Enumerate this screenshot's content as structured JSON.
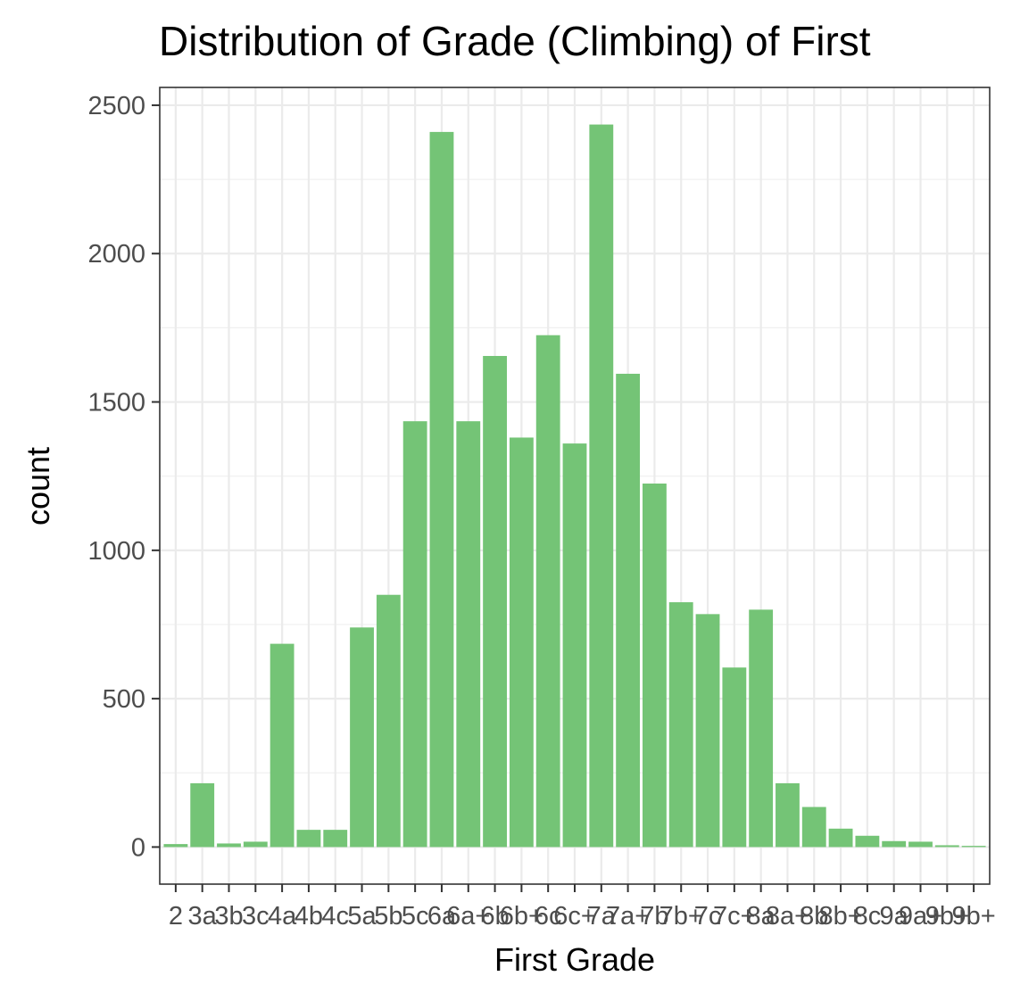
{
  "chart_data": {
    "type": "bar",
    "title": "Distribution of Grade (Climbing) of First",
    "xlabel": "First Grade",
    "ylabel": "count",
    "categories": [
      "2",
      "3a",
      "3b",
      "3c",
      "4a",
      "4b",
      "4c",
      "5a",
      "5b",
      "5c",
      "6a",
      "6a+",
      "6b",
      "6b+",
      "6c",
      "6c+",
      "7a",
      "7a+",
      "7b",
      "7b+",
      "7c",
      "7c+",
      "8a",
      "8a+",
      "8b",
      "8b+",
      "8c",
      "9a",
      "9a+",
      "9b+",
      "9b+"
    ],
    "values": [
      10,
      215,
      12,
      18,
      685,
      58,
      58,
      740,
      850,
      1435,
      2410,
      1435,
      1655,
      1380,
      1725,
      1360,
      2435,
      1595,
      1225,
      825,
      785,
      605,
      800,
      215,
      135,
      62,
      38,
      20,
      18,
      6,
      4
    ],
    "yticks": [
      0,
      500,
      1000,
      1500,
      2000,
      2500
    ],
    "ylim": [
      -125,
      2560
    ],
    "bar_color": "#74c476",
    "grid": true,
    "legend": "none"
  }
}
